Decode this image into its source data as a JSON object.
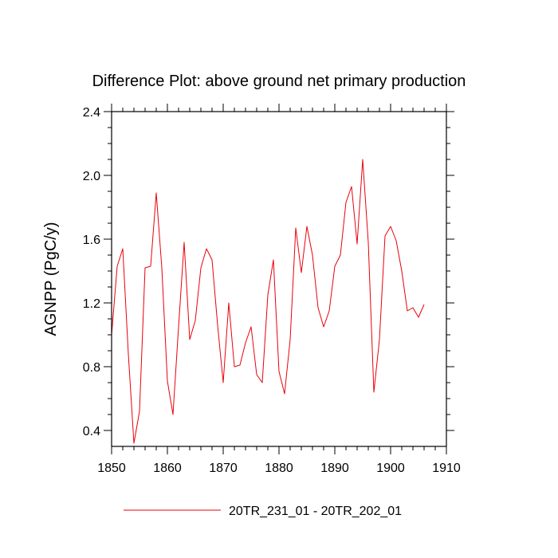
{
  "chart_data": {
    "type": "line",
    "title": "Difference Plot: above ground net primary production",
    "xlabel": "",
    "ylabel": "AGNPP  (PgC/y)",
    "xlim": [
      1850,
      1910
    ],
    "ylim": [
      0.3,
      2.4
    ],
    "xticks": [
      1850,
      1860,
      1870,
      1880,
      1890,
      1900,
      1910
    ],
    "xtick_labels": [
      "1850",
      "1860",
      "1870",
      "1880",
      "1890",
      "1900",
      "1910"
    ],
    "yticks": [
      0.4,
      0.8,
      1.2,
      1.6,
      2.0,
      2.4
    ],
    "ytick_labels": [
      "0.4",
      "0.8",
      "1.2",
      "1.6",
      "2.0",
      "2.4"
    ],
    "grid": false,
    "legend_position": "bottom-center",
    "series": [
      {
        "name": "20TR_231_01 - 20TR_202_01",
        "color": "#e8000b",
        "x": [
          1850,
          1851,
          1852,
          1853,
          1854,
          1855,
          1856,
          1857,
          1858,
          1859,
          1860,
          1861,
          1862,
          1863,
          1864,
          1865,
          1866,
          1867,
          1868,
          1869,
          1870,
          1871,
          1872,
          1873,
          1874,
          1875,
          1876,
          1877,
          1878,
          1879,
          1880,
          1881,
          1882,
          1883,
          1884,
          1885,
          1886,
          1887,
          1888,
          1889,
          1890,
          1891,
          1892,
          1893,
          1894,
          1895,
          1896,
          1897,
          1898,
          1899,
          1900,
          1901,
          1902,
          1903,
          1904,
          1905,
          1906
        ],
        "values": [
          1.0,
          1.43,
          1.54,
          0.88,
          0.32,
          0.52,
          1.42,
          1.43,
          1.89,
          1.42,
          0.71,
          0.5,
          1.05,
          1.58,
          0.97,
          1.09,
          1.42,
          1.54,
          1.47,
          1.06,
          0.7,
          1.2,
          0.8,
          0.81,
          0.95,
          1.05,
          0.75,
          0.7,
          1.25,
          1.47,
          0.77,
          0.63,
          0.97,
          1.67,
          1.39,
          1.68,
          1.5,
          1.17,
          1.05,
          1.15,
          1.43,
          1.5,
          1.83,
          1.93,
          1.57,
          2.1,
          1.58,
          0.64,
          0.97,
          1.62,
          1.68,
          1.59,
          1.4,
          1.15,
          1.17,
          1.11,
          1.19
        ]
      }
    ]
  }
}
